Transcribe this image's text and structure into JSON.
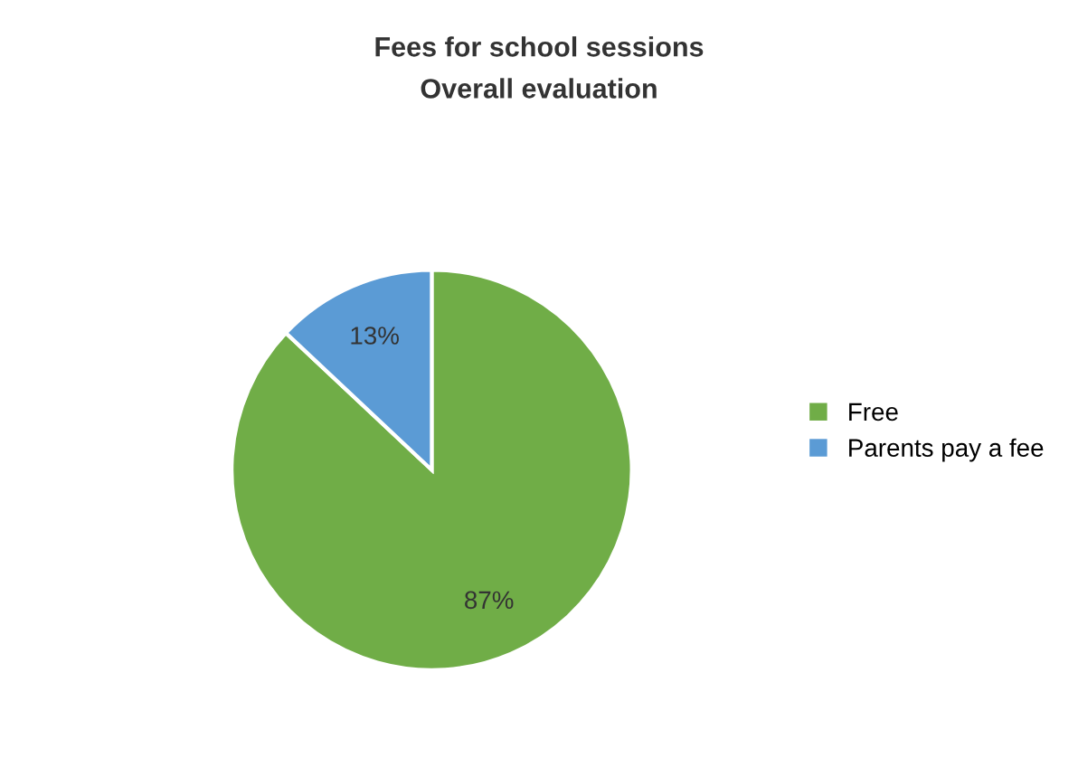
{
  "chart_data": {
    "type": "pie",
    "title": "Fees for school sessions",
    "subtitle": "Overall evaluation",
    "categories": [
      "Free",
      "Parents pay a fee"
    ],
    "values": [
      87,
      13
    ],
    "colors": [
      "#70ad47",
      "#5b9bd5"
    ],
    "value_labels": [
      "87%",
      "13%"
    ],
    "legend": "right"
  }
}
